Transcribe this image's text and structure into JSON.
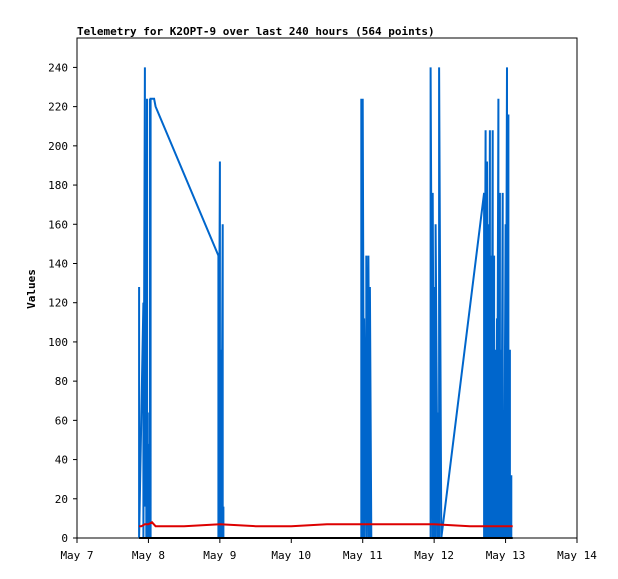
{
  "chart_data": {
    "type": "line",
    "title": "Telemetry for K2OPT-9 over last 240 hours (564 points)",
    "xlabel": "",
    "ylabel": "Values",
    "x_ticks": [
      "May 7",
      "May 8",
      "May 9",
      "May 10",
      "May 11",
      "May 12",
      "May 13",
      "May 14"
    ],
    "xlim": [
      "May 7",
      "May 14"
    ],
    "ylim": [
      0,
      255
    ],
    "y_ticks": [
      0,
      20,
      40,
      60,
      80,
      100,
      120,
      140,
      160,
      180,
      200,
      220,
      240
    ],
    "grid": false,
    "legend": "none",
    "series": [
      {
        "color": "#0066cc",
        "x_days_from_may7": [
          0.87,
          0.87,
          0.87,
          0.93,
          0.93,
          0.95,
          0.95,
          0.96,
          0.96,
          0.97,
          0.97,
          0.98,
          0.98,
          0.99,
          0.99,
          1.0,
          1.0,
          1.02,
          1.02,
          1.03,
          1.03,
          1.08,
          1.08,
          1.1,
          1.98,
          1.98,
          2.0,
          2.0,
          2.02,
          2.02,
          2.04,
          2.04,
          2.05,
          2.05,
          2.06,
          3.98,
          3.98,
          4.0,
          4.0,
          4.02,
          4.02,
          4.05,
          4.05,
          4.08,
          4.08,
          4.1,
          4.1,
          4.12,
          4.12,
          4.95,
          4.95,
          4.98,
          4.98,
          5.0,
          5.0,
          5.02,
          5.02,
          5.05,
          5.05,
          5.07,
          5.07,
          5.1,
          5.1,
          5.7,
          5.7,
          5.72,
          5.72,
          5.74,
          5.74,
          5.76,
          5.76,
          5.78,
          5.78,
          5.8,
          5.8,
          5.82,
          5.82,
          5.84,
          5.84,
          5.86,
          5.86,
          5.88,
          5.88,
          5.9,
          5.9,
          5.92,
          5.92,
          5.94,
          5.94,
          5.96,
          5.96,
          5.98,
          5.98,
          6.0,
          6.0,
          6.02,
          6.02,
          6.04,
          6.04,
          6.06,
          6.06,
          6.08,
          6.08,
          6.1
        ],
        "y": [
          0,
          128,
          0,
          120,
          0,
          240,
          16,
          48,
          16,
          64,
          0,
          224,
          0,
          64,
          16,
          48,
          0,
          0,
          224,
          0,
          224,
          224,
          224,
          220,
          144,
          0,
          192,
          0,
          96,
          0,
          160,
          0,
          16,
          0,
          0,
          0,
          224,
          0,
          224,
          0,
          112,
          0,
          144,
          0,
          144,
          0,
          128,
          0,
          0,
          0,
          240,
          0,
          176,
          0,
          128,
          0,
          160,
          0,
          64,
          0,
          240,
          0,
          0,
          176,
          0,
          208,
          0,
          192,
          0,
          160,
          0,
          208,
          0,
          144,
          0,
          208,
          0,
          144,
          0,
          96,
          0,
          112,
          0,
          224,
          0,
          176,
          0,
          96,
          0,
          176,
          0,
          60,
          0,
          160,
          0,
          240,
          0,
          216,
          0,
          96,
          0,
          32,
          0,
          0
        ]
      },
      {
        "color": "#dd0000",
        "x_days_from_may7": [
          0.87,
          0.9,
          0.95,
          1.0,
          1.05,
          1.1,
          1.5,
          2.0,
          2.5,
          3.0,
          3.5,
          4.0,
          4.5,
          5.0,
          5.5,
          6.0,
          6.1
        ],
        "y": [
          6,
          6,
          7,
          7,
          8,
          6,
          6,
          7,
          6,
          6,
          7,
          7,
          7,
          7,
          6,
          6,
          6
        ]
      },
      {
        "color": "#000000",
        "x_days_from_may7": [
          0.87,
          6.1
        ],
        "y": [
          0,
          0
        ]
      }
    ]
  }
}
